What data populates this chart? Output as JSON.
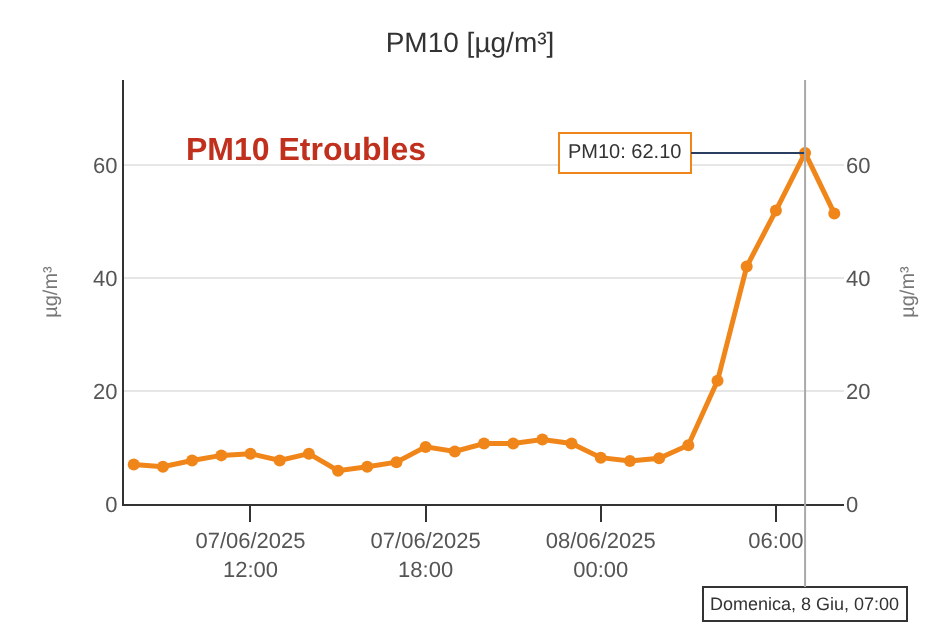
{
  "chart_data": {
    "type": "line",
    "title": "PM10 [µg/m³]",
    "ylabel": "µg/m³",
    "y2label": "µg/m³",
    "x": [
      "2025-06-07T08:00",
      "2025-06-07T09:00",
      "2025-06-07T10:00",
      "2025-06-07T11:00",
      "2025-06-07T12:00",
      "2025-06-07T13:00",
      "2025-06-07T14:00",
      "2025-06-07T15:00",
      "2025-06-07T16:00",
      "2025-06-07T17:00",
      "2025-06-07T18:00",
      "2025-06-07T19:00",
      "2025-06-07T20:00",
      "2025-06-07T21:00",
      "2025-06-07T22:00",
      "2025-06-07T23:00",
      "2025-06-08T00:00",
      "2025-06-08T01:00",
      "2025-06-08T02:00",
      "2025-06-08T03:00",
      "2025-06-08T04:00",
      "2025-06-08T05:00",
      "2025-06-08T06:00",
      "2025-06-08T07:00",
      "2025-06-08T08:00"
    ],
    "series": [
      {
        "color": "#f0861a",
        "values": [
          7.0,
          6.6,
          7.7,
          8.6,
          8.9,
          7.7,
          8.9,
          5.9,
          6.6,
          7.4,
          10.1,
          9.3,
          10.7,
          10.7,
          11.4,
          10.7,
          8.2,
          7.6,
          8.1,
          10.4,
          21.8,
          42.0,
          51.9,
          62.1,
          51.4
        ]
      }
    ],
    "xlim": [
      "2025-06-07T07:40",
      "2025-06-08T08:20"
    ],
    "xticks": [
      {
        "value": "2025-06-07T12:00",
        "label": "07/06/2025\n12:00"
      },
      {
        "value": "2025-06-07T18:00",
        "label": "07/06/2025\n18:00"
      },
      {
        "value": "2025-06-08T00:00",
        "label": "08/06/2025\n00:00"
      },
      {
        "value": "2025-06-08T06:00",
        "label": "06:00"
      }
    ],
    "ylim": [
      0,
      75
    ],
    "yticks": [
      0,
      20,
      40,
      60
    ],
    "y2lim": [
      0,
      75
    ],
    "y2ticks": [
      0,
      20,
      40,
      60
    ],
    "annotations": [
      "PM10 Etroubles",
      {
        "text": "PM10: 62.10",
        "x": "2025-06-08T07:00",
        "y": 62.1
      },
      {
        "text": "Domenica, 8 Giu, 07:00",
        "x": "2025-06-08T07:00"
      }
    ],
    "grid": "y",
    "marker": "circle",
    "line_style": "solid"
  }
}
